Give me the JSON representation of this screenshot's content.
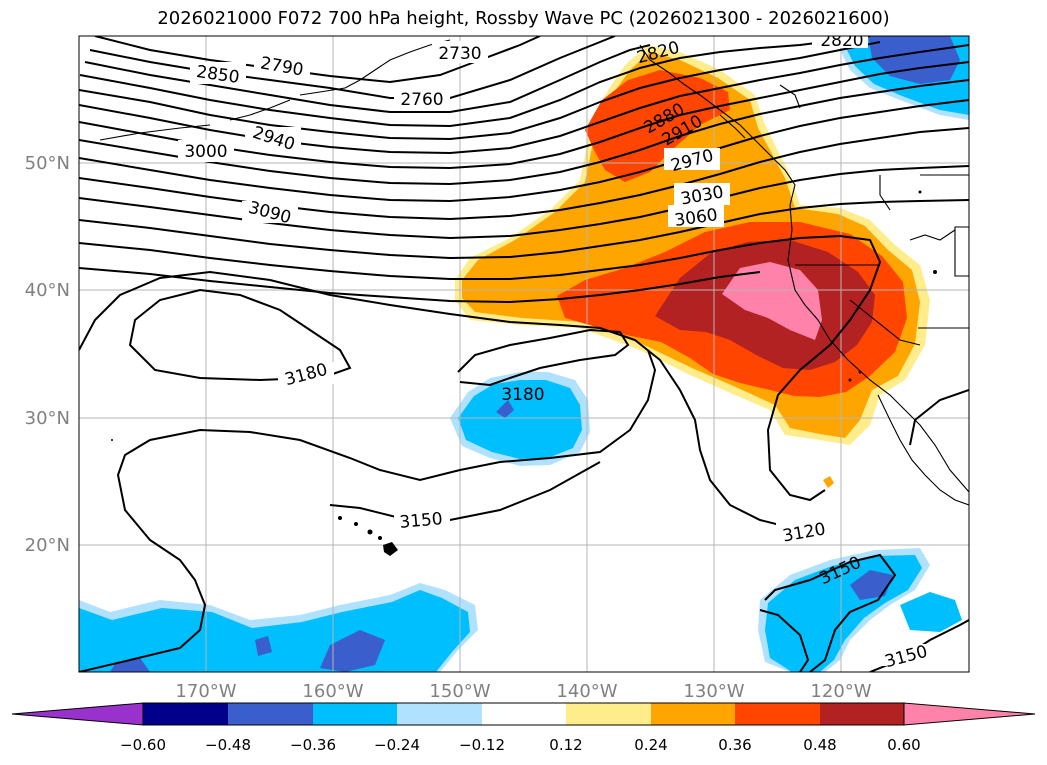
{
  "title": "2026021000 F072 700 hPa height, Rossby Wave PC (2026021300 - 2026021600)",
  "map": {
    "lat_labels": [
      "50°N",
      "40°N",
      "30°N",
      "20°N"
    ],
    "lon_labels": [
      "170°W",
      "160°W",
      "150°W",
      "140°W",
      "130°W",
      "120°W"
    ],
    "contour_labels": [
      "2730",
      "2820",
      "2790",
      "2760",
      "2850",
      "2880",
      "2910",
      "2940",
      "2970",
      "3000",
      "3030",
      "3060",
      "3090",
      "3180",
      "3180",
      "3150",
      "3120",
      "3150",
      "3150",
      "2820"
    ],
    "grid": true,
    "contour_color": "#000000"
  },
  "colorbar": {
    "ticks": [
      "−0.60",
      "−0.48",
      "−0.36",
      "−0.24",
      "−0.12",
      "0.12",
      "0.24",
      "0.36",
      "0.48",
      "0.60"
    ],
    "colors": [
      "#9932cc",
      "#00008b",
      "#3a5fcd",
      "#00bfff",
      "#b0e2ff",
      "#ffffff",
      "#ffec8b",
      "#ffa500",
      "#ff4500",
      "#b22222",
      "#ff82ab"
    ],
    "extend": "both"
  }
}
